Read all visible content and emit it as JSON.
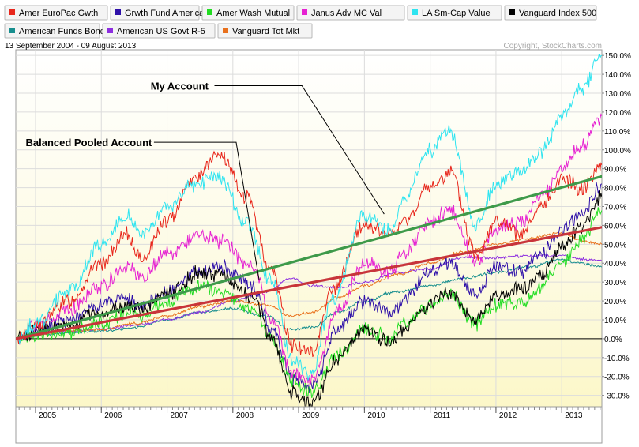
{
  "chart_data": {
    "type": "line",
    "date_range_label": "13 September 2004 - 09 August 2013",
    "copyright": "Copyright, StockCharts.com",
    "x_range": [
      2004.7,
      2013.61
    ],
    "ylim": [
      -36,
      153
    ],
    "grid": true,
    "legend_placement": "top",
    "x_tick_labels": [
      {
        "label": "2005",
        "x": 2005.0
      },
      {
        "label": "2006",
        "x": 2006.0
      },
      {
        "label": "2007",
        "x": 2007.0
      },
      {
        "label": "2008",
        "x": 2008.0
      },
      {
        "label": "2009",
        "x": 2009.0
      },
      {
        "label": "2010",
        "x": 2010.0
      },
      {
        "label": "2011",
        "x": 2011.0
      },
      {
        "label": "2012",
        "x": 2012.0
      },
      {
        "label": "2013",
        "x": 2013.0
      }
    ],
    "y_ticks": [
      {
        "label": "-30.0%",
        "value": -30
      },
      {
        "label": "-20.0%",
        "value": -20
      },
      {
        "label": "-10.0%",
        "value": -10
      },
      {
        "label": "0.0%",
        "value": 0
      },
      {
        "label": "10.0%",
        "value": 10
      },
      {
        "label": "20.0%",
        "value": 20
      },
      {
        "label": "30.0%",
        "value": 30
      },
      {
        "label": "40.0%",
        "value": 40
      },
      {
        "label": "50.0%",
        "value": 50
      },
      {
        "label": "60.0%",
        "value": 60
      },
      {
        "label": "70.0%",
        "value": 70
      },
      {
        "label": "80.0%",
        "value": 80
      },
      {
        "label": "90.0%",
        "value": 90
      },
      {
        "label": "100.0%",
        "value": 100
      },
      {
        "label": "110.0%",
        "value": 110
      },
      {
        "label": "120.0%",
        "value": 120
      },
      {
        "label": "130.0%",
        "value": 130
      },
      {
        "label": "140.0%",
        "value": 140
      },
      {
        "label": "150.0%",
        "value": 150
      }
    ],
    "series": [
      {
        "name": "Amer EuroPac Gwth",
        "color": "#e8271c",
        "x": [
          2004.7,
          2005.0,
          2005.5,
          2006.0,
          2006.4,
          2006.6,
          2007.0,
          2007.4,
          2007.8,
          2008.2,
          2008.6,
          2008.9,
          2009.2,
          2009.5,
          2010.0,
          2010.4,
          2010.6,
          2011.0,
          2011.3,
          2011.7,
          2012.0,
          2012.4,
          2012.7,
          2013.0,
          2013.3,
          2013.61
        ],
        "values": [
          0,
          7,
          20,
          40,
          55,
          42,
          62,
          85,
          97,
          75,
          35,
          -3,
          -8,
          25,
          60,
          55,
          62,
          80,
          88,
          45,
          62,
          55,
          70,
          85,
          80,
          92
        ]
      },
      {
        "name": "Grwth Fund America",
        "color": "#2d0fa8",
        "x": [
          2004.7,
          2005.0,
          2005.5,
          2006.0,
          2006.4,
          2006.6,
          2007.0,
          2007.5,
          2007.8,
          2008.3,
          2008.6,
          2008.9,
          2009.2,
          2009.6,
          2010.0,
          2010.4,
          2010.6,
          2011.0,
          2011.3,
          2011.7,
          2012.0,
          2012.4,
          2012.7,
          2013.0,
          2013.3,
          2013.61
        ],
        "values": [
          0,
          5,
          10,
          18,
          22,
          16,
          25,
          35,
          38,
          28,
          5,
          -20,
          -25,
          5,
          20,
          14,
          20,
          35,
          40,
          24,
          38,
          36,
          45,
          58,
          66,
          82
        ]
      },
      {
        "name": "Amer Wash Mutual",
        "color": "#22dd22",
        "x": [
          2004.7,
          2005.0,
          2005.5,
          2006.0,
          2006.4,
          2006.6,
          2007.0,
          2007.5,
          2007.8,
          2008.3,
          2008.6,
          2008.9,
          2009.2,
          2009.6,
          2010.0,
          2010.4,
          2010.6,
          2011.0,
          2011.3,
          2011.7,
          2012.0,
          2012.4,
          2012.7,
          2013.0,
          2013.3,
          2013.61
        ],
        "values": [
          0,
          2,
          4,
          8,
          14,
          12,
          20,
          28,
          25,
          15,
          0,
          -22,
          -28,
          -8,
          5,
          0,
          8,
          18,
          24,
          8,
          18,
          20,
          28,
          40,
          52,
          68
        ]
      },
      {
        "name": "Janus Adv MC Val",
        "color": "#e622d2",
        "x": [
          2004.7,
          2005.0,
          2005.5,
          2006.0,
          2006.4,
          2006.6,
          2007.0,
          2007.5,
          2007.8,
          2008.3,
          2008.6,
          2008.9,
          2009.2,
          2009.6,
          2010.0,
          2010.4,
          2010.6,
          2011.0,
          2011.3,
          2011.7,
          2012.0,
          2012.4,
          2012.7,
          2013.0,
          2013.3,
          2013.61
        ],
        "values": [
          0,
          6,
          15,
          28,
          38,
          32,
          45,
          55,
          52,
          38,
          10,
          -18,
          -22,
          15,
          40,
          35,
          45,
          62,
          68,
          40,
          58,
          62,
          75,
          90,
          102,
          118
        ]
      },
      {
        "name": "LA Sm-Cap Value",
        "color": "#2ee4f0",
        "x": [
          2004.7,
          2005.0,
          2005.5,
          2006.0,
          2006.4,
          2006.6,
          2007.0,
          2007.4,
          2007.8,
          2008.2,
          2008.6,
          2008.9,
          2009.2,
          2009.5,
          2010.0,
          2010.4,
          2010.6,
          2011.0,
          2011.3,
          2011.7,
          2012.0,
          2012.4,
          2012.7,
          2013.0,
          2013.3,
          2013.61
        ],
        "values": [
          0,
          8,
          25,
          50,
          65,
          55,
          70,
          82,
          85,
          62,
          30,
          -12,
          -18,
          20,
          65,
          58,
          75,
          100,
          110,
          60,
          82,
          88,
          100,
          118,
          132,
          150
        ]
      },
      {
        "name": "Vanguard Index 500",
        "color": "#000000",
        "x": [
          2004.7,
          2005.0,
          2005.5,
          2006.0,
          2006.4,
          2006.6,
          2007.0,
          2007.5,
          2007.8,
          2008.3,
          2008.6,
          2008.9,
          2009.2,
          2009.6,
          2010.0,
          2010.4,
          2010.6,
          2011.0,
          2011.3,
          2011.7,
          2012.0,
          2012.4,
          2012.7,
          2013.0,
          2013.3,
          2013.61
        ],
        "values": [
          0,
          4,
          8,
          14,
          18,
          15,
          24,
          35,
          34,
          22,
          0,
          -28,
          -34,
          -10,
          4,
          -2,
          6,
          18,
          24,
          10,
          22,
          26,
          34,
          48,
          60,
          75
        ]
      },
      {
        "name": "American Funds Bond",
        "color": "#178e8e",
        "x": [
          2004.7,
          2005.0,
          2005.5,
          2006.0,
          2006.5,
          2007.0,
          2007.5,
          2008.0,
          2008.5,
          2008.9,
          2009.2,
          2009.6,
          2010.0,
          2010.5,
          2011.0,
          2011.5,
          2012.0,
          2012.5,
          2013.0,
          2013.3,
          2013.61
        ],
        "values": [
          0,
          2,
          3,
          4,
          6,
          10,
          14,
          16,
          12,
          5,
          6,
          14,
          20,
          25,
          28,
          32,
          35,
          38,
          42,
          40,
          38
        ]
      },
      {
        "name": "American US Govt R-5",
        "color": "#8d2ee0",
        "x": [
          2004.7,
          2005.0,
          2005.5,
          2006.0,
          2006.5,
          2007.0,
          2007.5,
          2008.0,
          2008.5,
          2008.9,
          2009.2,
          2009.6,
          2010.0,
          2010.5,
          2011.0,
          2011.5,
          2012.0,
          2012.5,
          2013.0,
          2013.3,
          2013.61
        ],
        "values": [
          0,
          3,
          4,
          5,
          7,
          10,
          14,
          20,
          25,
          32,
          28,
          27,
          30,
          35,
          37,
          43,
          43,
          44,
          44,
          42,
          41
        ]
      },
      {
        "name": "Vanguard Tot Mkt",
        "color": "#e8701c",
        "x": [
          2004.7,
          2005.0,
          2005.5,
          2006.0,
          2006.5,
          2007.0,
          2007.5,
          2008.0,
          2008.5,
          2008.9,
          2009.2,
          2009.6,
          2010.0,
          2010.5,
          2011.0,
          2011.5,
          2012.0,
          2012.5,
          2013.0,
          2013.3,
          2013.61
        ],
        "values": [
          0,
          2,
          4,
          5,
          8,
          12,
          17,
          20,
          18,
          12,
          14,
          22,
          28,
          34,
          40,
          46,
          50,
          53,
          56,
          52,
          50
        ]
      }
    ],
    "trend_lines": [
      {
        "name": "My Account",
        "color": "#3e9a4a",
        "x": [
          2004.7,
          2013.61
        ],
        "values": [
          0,
          86
        ]
      },
      {
        "name": "Balanced Pooled Account",
        "color": "#c8343a",
        "x": [
          2004.7,
          2013.61
        ],
        "values": [
          0,
          59
        ]
      }
    ],
    "annotations": [
      {
        "text": "My Account",
        "label_x": 2006.75,
        "label_y": 134,
        "line_start_x": 2007.72,
        "line_start_y": 134,
        "elbow_x": 2009.05,
        "elbow_y": 134,
        "target_x": 2010.3,
        "target_y": 66
      },
      {
        "text": "Balanced Pooled Account",
        "label_x": 2004.85,
        "label_y": 104,
        "line_start_x": 2006.8,
        "line_start_y": 104,
        "elbow_x": 2008.05,
        "elbow_y": 104,
        "target_x": 2008.4,
        "target_y": 31
      }
    ]
  }
}
